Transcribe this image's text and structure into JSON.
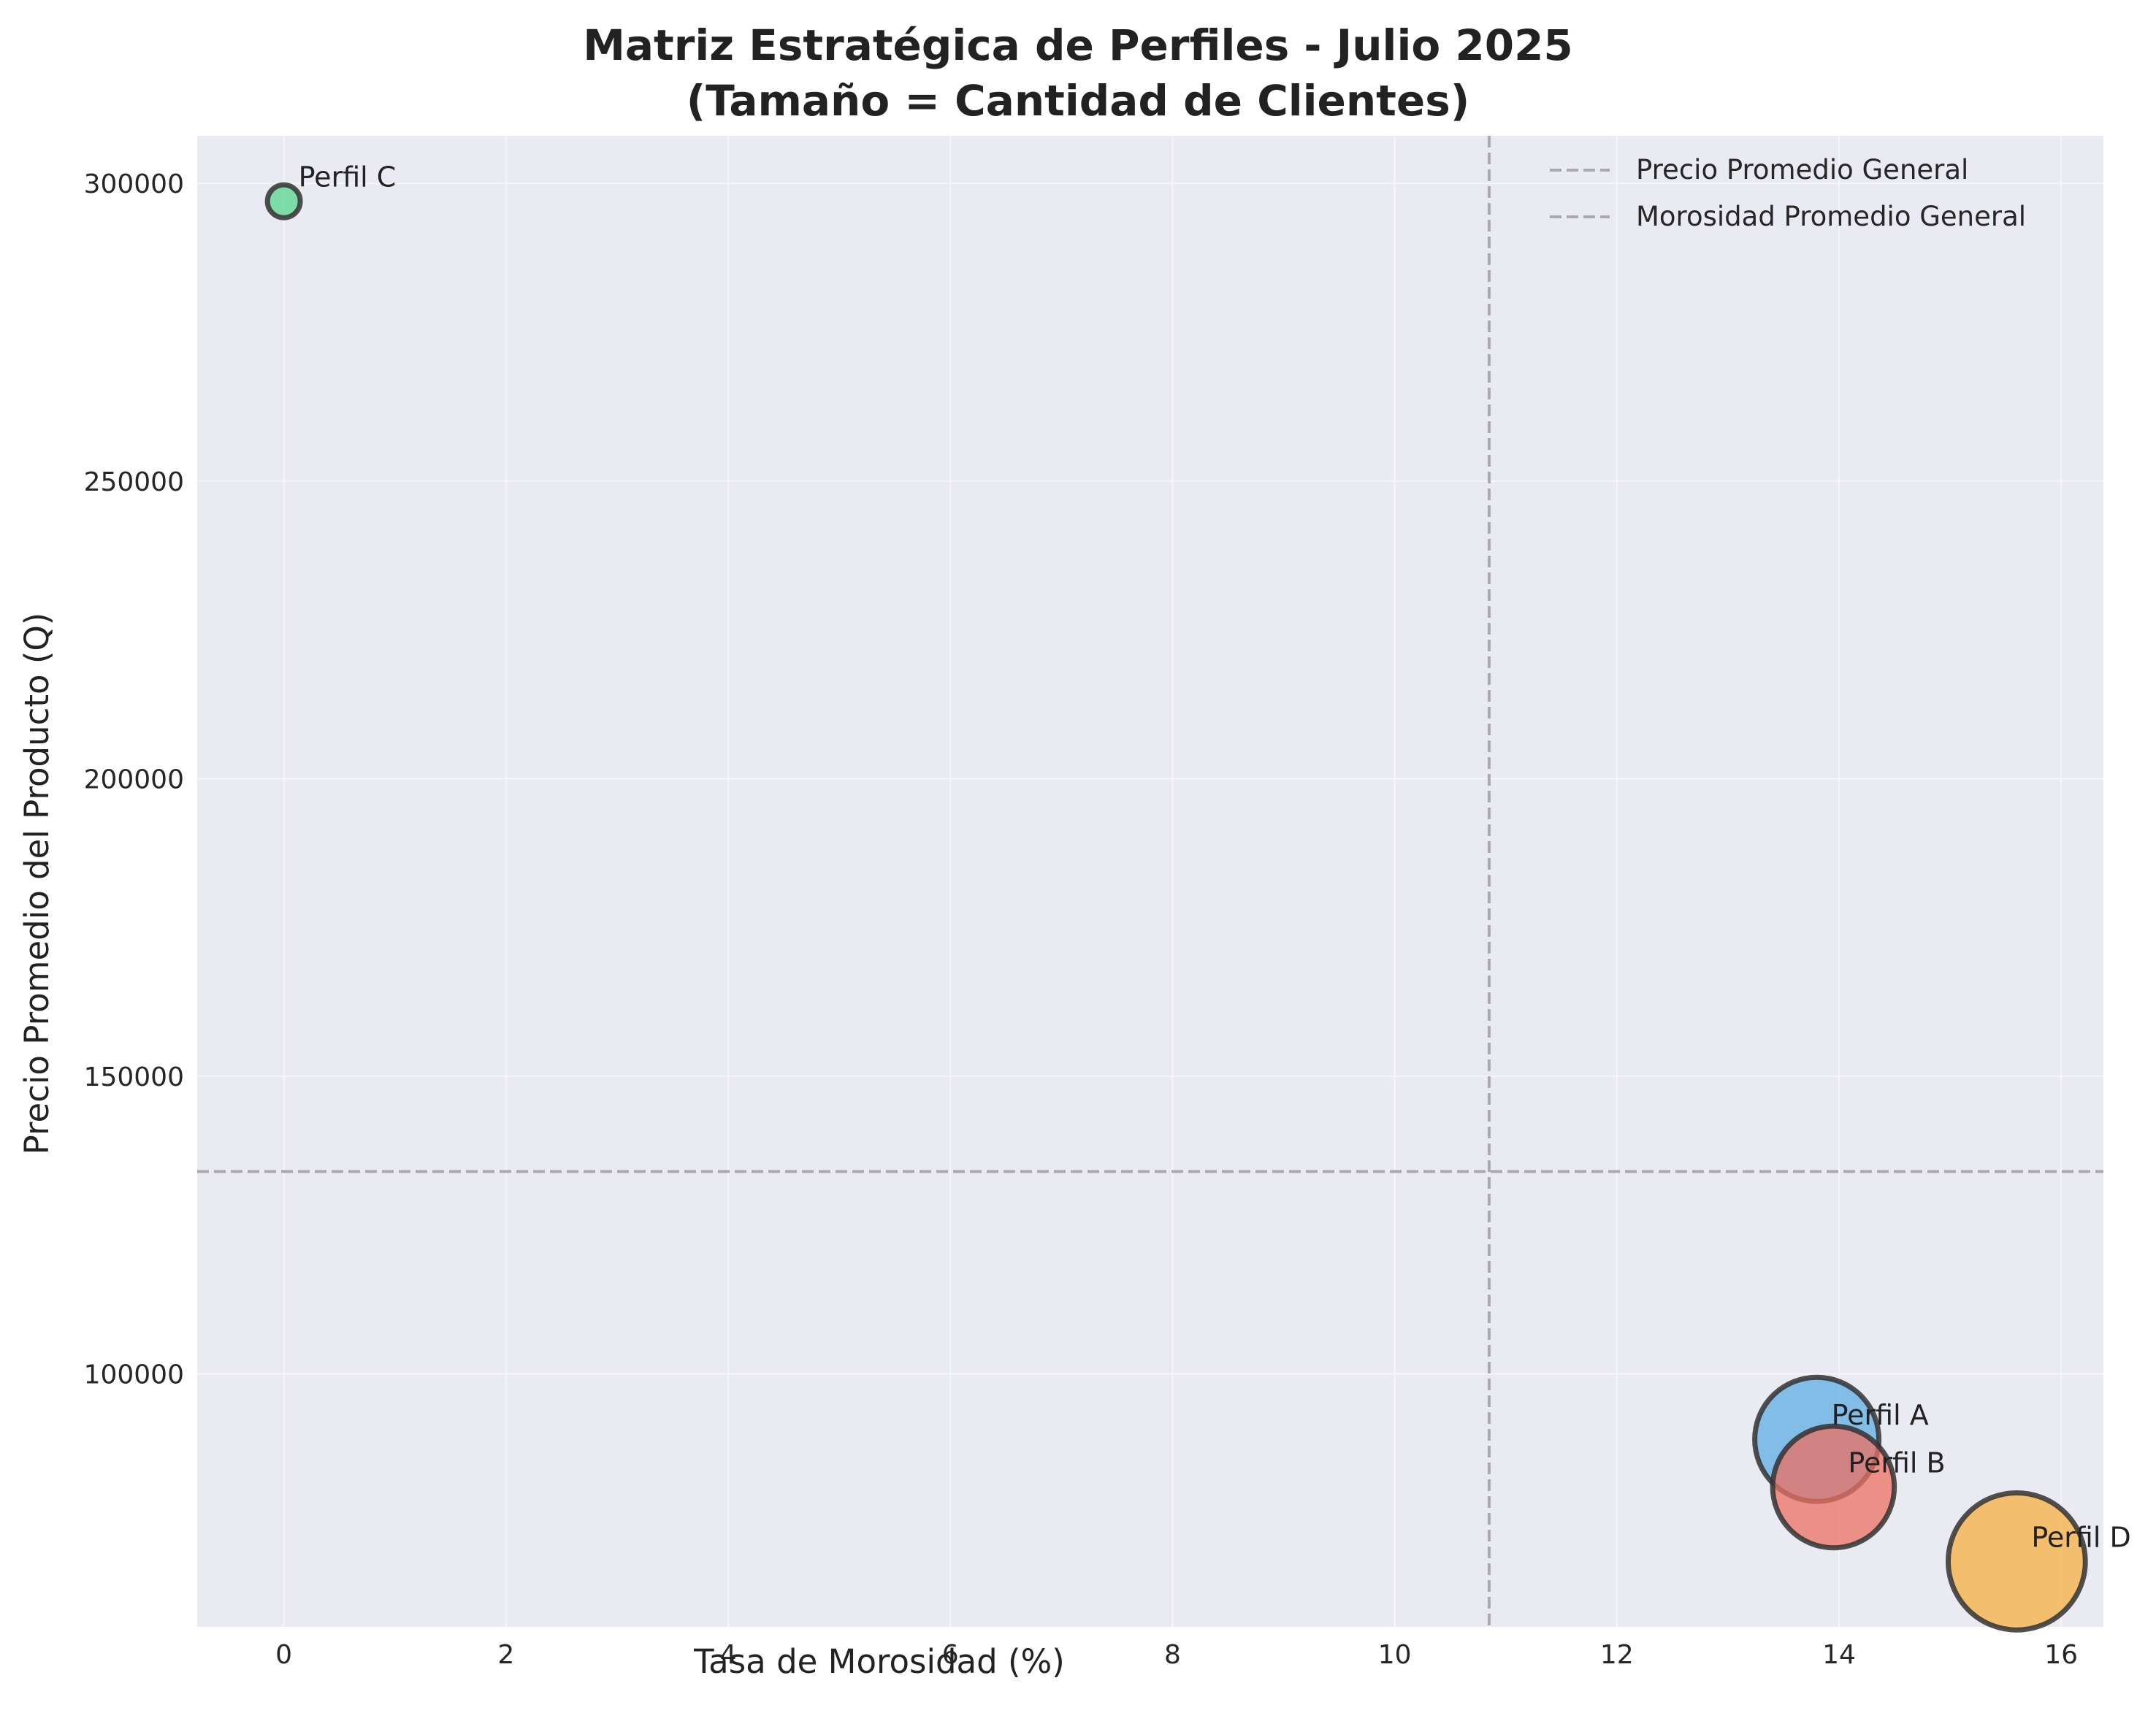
{
  "chart_data": {
    "type": "scatter",
    "title": "Matriz Estratégica de Perfiles - Julio 2025",
    "subtitle": "(Tamaño = Cantidad de Clientes)",
    "xlabel": "Tasa de Morosidad (%)",
    "ylabel": "Precio Promedio del Producto (Q)",
    "xlim": [
      -0.78,
      16.38
    ],
    "ylim": [
      57500,
      308000
    ],
    "xticks": [
      0,
      2,
      4,
      6,
      8,
      10,
      12,
      14,
      16
    ],
    "yticks": [
      100000,
      150000,
      200000,
      250000,
      300000
    ],
    "grid": true,
    "legend_position": "top-right",
    "size_encoding": "relative customer count (not printed)",
    "points": [
      {
        "label": "Perfil C",
        "x": 0.0,
        "y": 297000,
        "size": 0.07,
        "color": "#58d68d"
      },
      {
        "label": "Perfil A",
        "x": 13.8,
        "y": 89000,
        "size": 1.0,
        "color": "#5dade2"
      },
      {
        "label": "Perfil B",
        "x": 13.95,
        "y": 81000,
        "size": 0.96,
        "color": "#ec7063"
      },
      {
        "label": "Perfil D",
        "x": 15.6,
        "y": 68500,
        "size": 1.22,
        "color": "#f5b041"
      }
    ],
    "reference_lines": [
      {
        "label": "Precio Promedio General",
        "orientation": "horizontal",
        "value": 134000
      },
      {
        "label": "Morosidad Promedio General",
        "orientation": "vertical",
        "value": 10.85
      }
    ],
    "colors": {
      "plot_background": "#eaeaf2",
      "grid": "#f5f5f8",
      "reference_line": "#aaaaaa",
      "marker_edge": "#333333"
    }
  }
}
